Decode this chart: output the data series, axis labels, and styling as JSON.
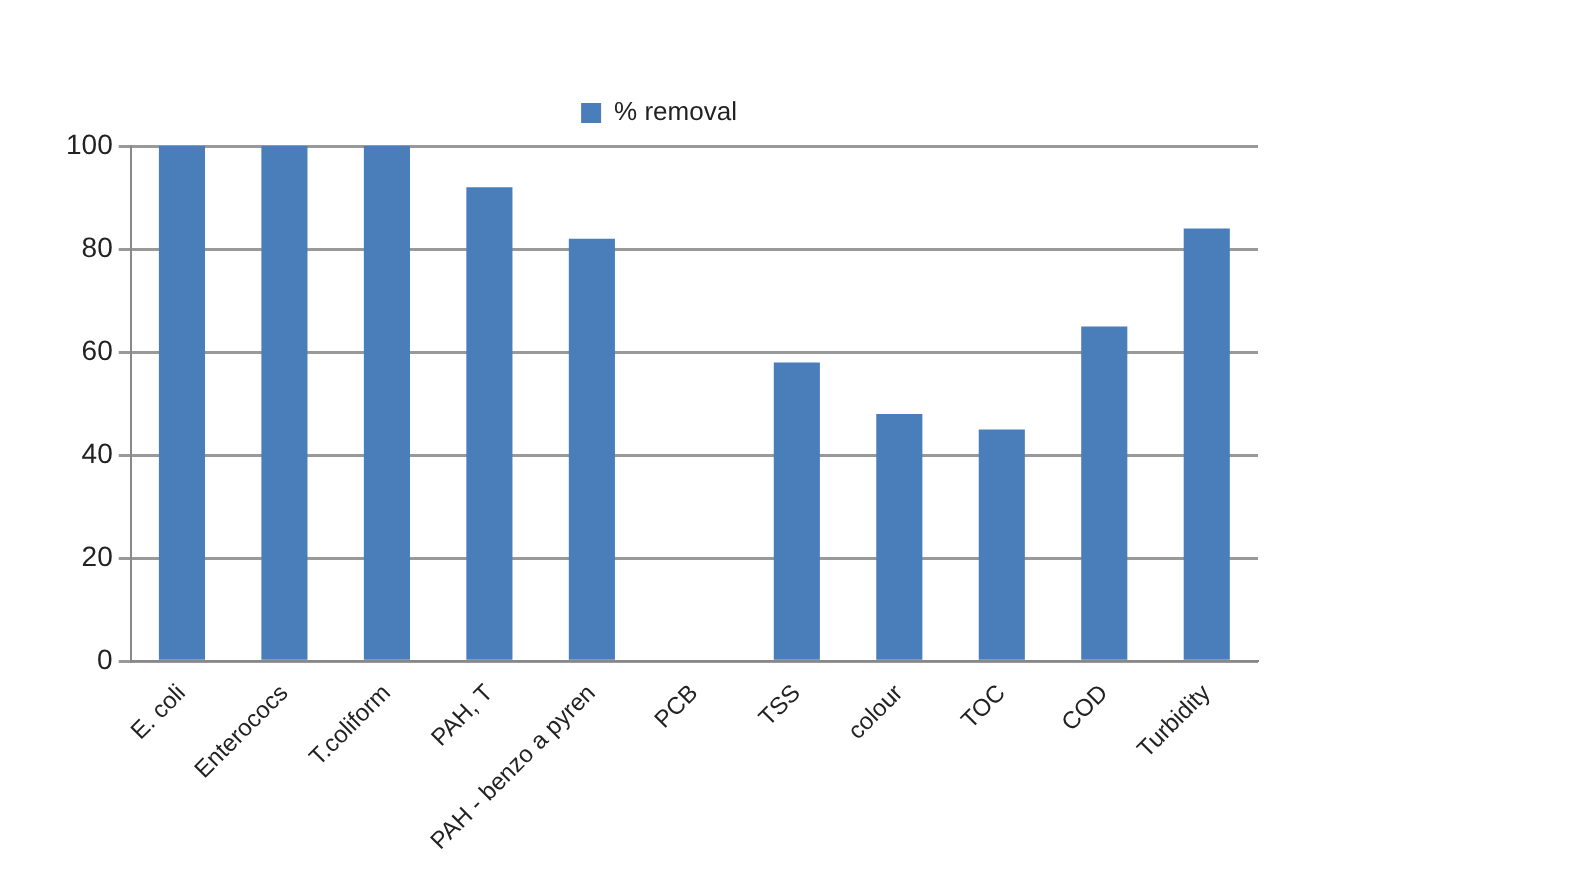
{
  "chart_data": {
    "type": "bar",
    "categories": [
      "E. coli",
      "Enterococs",
      "T.coliform",
      "PAH, T",
      "PAH - benzo a pyren",
      "PCB",
      "TSS",
      "colour",
      "TOC",
      "COD",
      "Turbidity"
    ],
    "series": [
      {
        "name": "% removal",
        "color": "#4a7ebb",
        "values": [
          100,
          100,
          100,
          92,
          82,
          0,
          58,
          48,
          45,
          65,
          84
        ]
      }
    ],
    "ylim": [
      0,
      100
    ],
    "yticks": [
      0,
      20,
      40,
      60,
      80,
      100
    ],
    "grid": "y",
    "legend": "top"
  }
}
